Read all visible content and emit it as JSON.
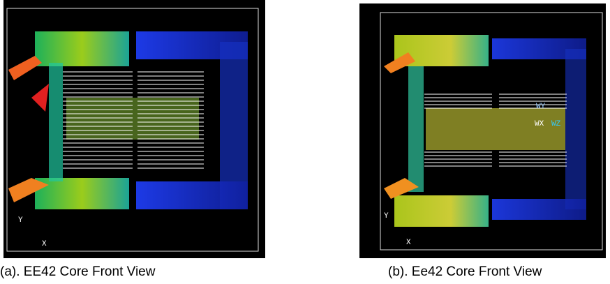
{
  "figures": [
    {
      "caption": "(a). EE42 Core Front View",
      "axis_labels": [
        "Y",
        "X"
      ]
    },
    {
      "caption": "(b). Ee42 Core Front View",
      "axis_labels": [
        "Y",
        "X"
      ],
      "legend_labels": [
        "WY",
        "WX",
        "WZ"
      ]
    }
  ]
}
